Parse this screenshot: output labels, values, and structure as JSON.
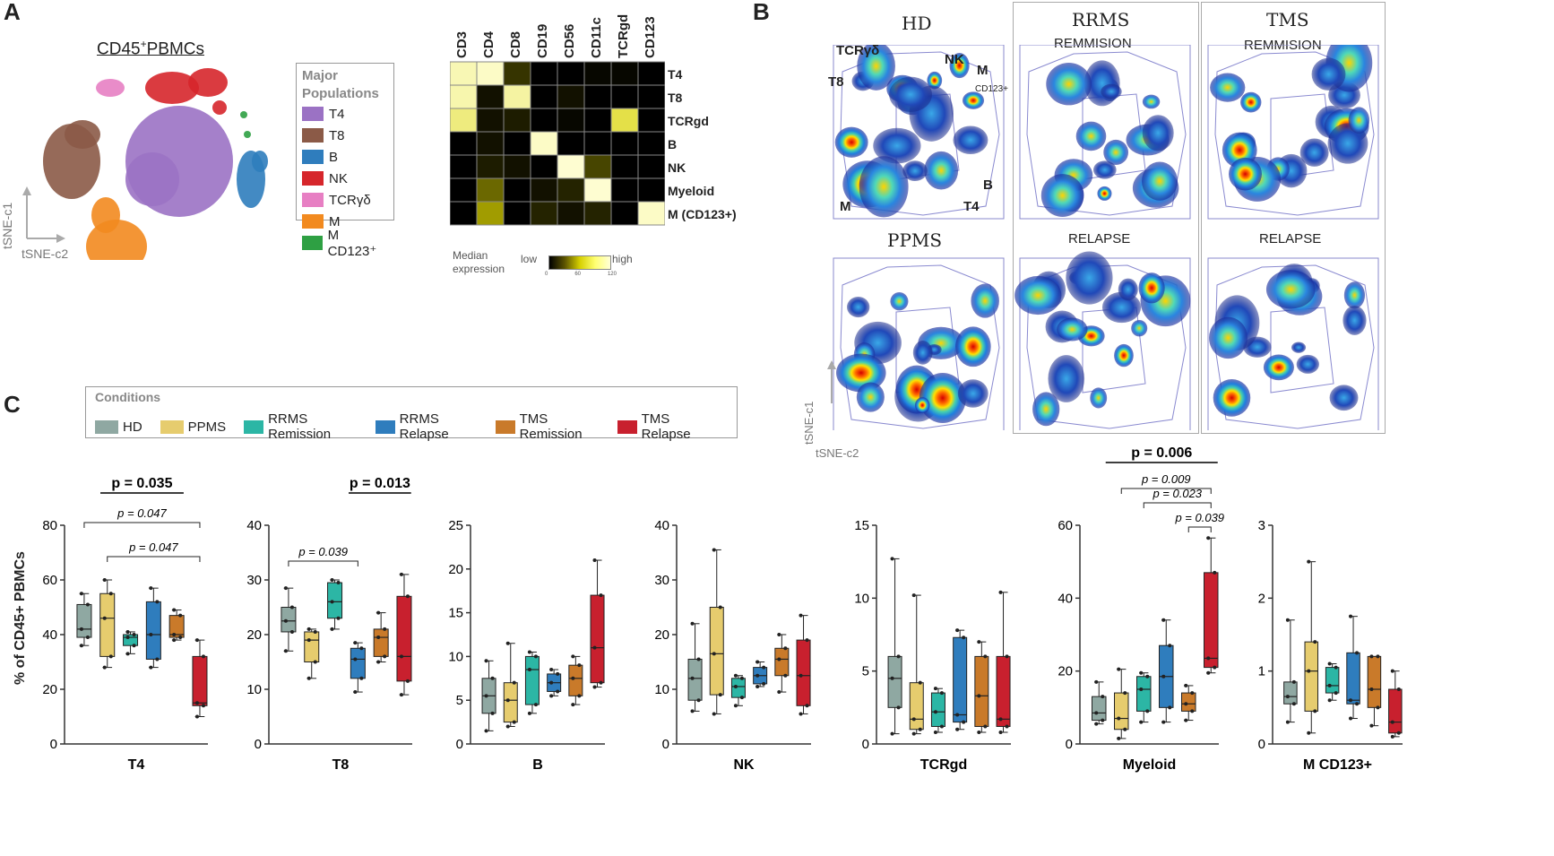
{
  "panels": {
    "a": "A",
    "b": "B",
    "c": "C"
  },
  "panelA": {
    "title": "CD45",
    "title_sup": "+",
    "title_rest": "PBMCs",
    "axis_y": "tSNE-c1",
    "axis_x": "tSNE-c2",
    "legend_title_1": "Major",
    "legend_title_2": "Populations",
    "legend": [
      {
        "label": "T4",
        "color": "#9b72c4"
      },
      {
        "label": "T8",
        "color": "#8b5a47"
      },
      {
        "label": "B",
        "color": "#2f7dbd"
      },
      {
        "label": "NK",
        "color": "#d6262b"
      },
      {
        "label": "TCRγδ",
        "color": "#e77fc3"
      },
      {
        "label": "M",
        "color": "#f28a1f"
      },
      {
        "label": "M CD123⁺",
        "color": "#2ea043"
      }
    ],
    "heatmap": {
      "columns": [
        "CD3",
        "CD4",
        "CD8",
        "CD19",
        "CD56",
        "CD11c",
        "TCRgd",
        "CD123"
      ],
      "rows": [
        "T4",
        "T8",
        "TCRgd",
        "B",
        "NK",
        "Myeloid",
        "M (CD123+)"
      ],
      "values": [
        [
          110,
          115,
          15,
          0,
          0,
          2,
          2,
          0
        ],
        [
          108,
          5,
          105,
          0,
          5,
          0,
          0,
          0
        ],
        [
          95,
          5,
          8,
          0,
          2,
          0,
          80,
          0
        ],
        [
          0,
          5,
          0,
          115,
          0,
          0,
          0,
          0
        ],
        [
          0,
          8,
          5,
          0,
          118,
          20,
          0,
          0
        ],
        [
          0,
          30,
          0,
          5,
          10,
          118,
          0,
          0
        ],
        [
          0,
          45,
          0,
          10,
          5,
          10,
          0,
          115
        ]
      ],
      "legend_label_1": "Median",
      "legend_label_2": "expression",
      "low": "low",
      "high": "high",
      "ticks": [
        "0",
        "60",
        "120"
      ]
    }
  },
  "panelB": {
    "hd": "HD",
    "rrms": "RRMS",
    "tms": "TMS",
    "ppms": "PPMS",
    "remission1": "REMMISION",
    "remission2": "REMMISION",
    "relapse1": "RELAPSE",
    "relapse2": "RELAPSE",
    "labels": {
      "tcr": "TCRγδ",
      "nk": "NK",
      "m": "M",
      "cd123": "CD123+",
      "t8": "T8",
      "b": "B",
      "m2": "M",
      "t4": "T4"
    },
    "axis_y": "tSNE-c1",
    "axis_x": "tSNE-c2"
  },
  "conditions": {
    "title": "Conditions",
    "items": [
      {
        "label": "HD",
        "color": "#8fa8a2"
      },
      {
        "label": "PPMS",
        "color": "#e6cc6e"
      },
      {
        "label": "RRMS Remission",
        "color": "#2cb6a5"
      },
      {
        "label": "RRMS Relapse",
        "color": "#2f7dbd"
      },
      {
        "label": "TMS Remission",
        "color": "#c97a2a"
      },
      {
        "label": "TMS Relapse",
        "color": "#c8202e"
      }
    ]
  },
  "y_axis_label": "% of CD45+ PBMCs",
  "chart_data": [
    {
      "type": "box",
      "title": "T4",
      "ylim": [
        0,
        80
      ],
      "yticks": [
        "0",
        "20",
        "40",
        "60",
        "80"
      ],
      "boxes": [
        [
          36,
          39,
          42,
          51,
          55
        ],
        [
          28,
          32,
          46,
          55,
          60
        ],
        [
          33,
          36,
          39,
          40,
          41
        ],
        [
          28,
          31,
          40,
          52,
          57
        ],
        [
          38,
          39,
          40,
          47,
          49
        ],
        [
          10,
          14,
          15,
          32,
          38
        ]
      ],
      "bold_p": "p = 0.035",
      "p1": "p = 0.047",
      "p2": "p = 0.047"
    },
    {
      "type": "box",
      "title": "T8",
      "ylim": [
        0,
        40
      ],
      "yticks": [
        "0",
        "10",
        "20",
        "30",
        "40"
      ],
      "boxes": [
        [
          17,
          20.5,
          22.5,
          25,
          28.5
        ],
        [
          12,
          15,
          19,
          20.5,
          21
        ],
        [
          21,
          23,
          26,
          29.5,
          30
        ],
        [
          9.5,
          12,
          15.5,
          17.5,
          18.5
        ],
        [
          15,
          16,
          19.5,
          21,
          24
        ],
        [
          9,
          11.5,
          16,
          27,
          31
        ]
      ],
      "bold_p": "p = 0.013",
      "p1": "p = 0.039"
    },
    {
      "type": "box",
      "title": "B",
      "ylim": [
        0,
        25
      ],
      "yticks": [
        "0",
        "5",
        "10",
        "15",
        "20",
        "25"
      ],
      "boxes": [
        [
          1.5,
          3.5,
          5.5,
          7.5,
          9.5
        ],
        [
          2,
          2.5,
          5,
          7,
          11.5
        ],
        [
          3.5,
          4.5,
          8.5,
          10,
          10.5
        ],
        [
          5.5,
          6,
          7,
          8,
          8.5
        ],
        [
          4.5,
          5.5,
          7.5,
          9,
          10
        ],
        [
          6.5,
          7,
          11,
          17,
          21
        ]
      ]
    },
    {
      "type": "box",
      "title": "NK",
      "ylim": [
        0,
        40
      ],
      "yticks": [
        "0",
        "10",
        "20",
        "30",
        "40"
      ],
      "boxes": [
        [
          6,
          8,
          12,
          15.5,
          22
        ],
        [
          5.5,
          9,
          16.5,
          25,
          35.5
        ],
        [
          7,
          8.5,
          10.5,
          12,
          12.5
        ],
        [
          10.5,
          11,
          12.5,
          14,
          15
        ],
        [
          9.5,
          12.5,
          15.5,
          17.5,
          20
        ],
        [
          5.5,
          7,
          12.5,
          19,
          23.5
        ]
      ]
    },
    {
      "type": "box",
      "title": "TCRgd",
      "ylim": [
        0,
        15
      ],
      "yticks": [
        "0",
        "5",
        "10",
        "15"
      ],
      "boxes": [
        [
          0.7,
          2.5,
          4.5,
          6,
          12.7
        ],
        [
          0.7,
          1,
          1.7,
          4.2,
          10.2
        ],
        [
          0.8,
          1.2,
          2.2,
          3.5,
          3.8
        ],
        [
          1,
          1.5,
          2,
          7.3,
          7.8
        ],
        [
          0.8,
          1.2,
          3.3,
          6,
          7
        ],
        [
          0.8,
          1.2,
          1.7,
          6,
          10.4
        ]
      ]
    },
    {
      "type": "box",
      "title": "Myeloid",
      "ylim": [
        0,
        60
      ],
      "yticks": [
        "0",
        "20",
        "40",
        "60"
      ],
      "boxes": [
        [
          5.5,
          6.5,
          8.5,
          13,
          17
        ],
        [
          1.5,
          4,
          7,
          14,
          20.5
        ],
        [
          6,
          9,
          15,
          18.5,
          19.5
        ],
        [
          6,
          10,
          18.5,
          27,
          34
        ],
        [
          6.5,
          9,
          11,
          14,
          16
        ],
        [
          19.5,
          21,
          23.5,
          47,
          56.5
        ]
      ],
      "bold_p": "p = 0.006",
      "p1": "p = 0.009",
      "p2": "p = 0.023",
      "p3": "p = 0.039"
    },
    {
      "type": "box",
      "title": "M CD123+",
      "ylim": [
        0,
        3
      ],
      "yticks": [
        "0",
        "1",
        "2",
        "3"
      ],
      "boxes": [
        [
          0.3,
          0.55,
          0.65,
          0.85,
          1.7
        ],
        [
          0.15,
          0.45,
          1,
          1.4,
          2.5
        ],
        [
          0.6,
          0.7,
          0.8,
          1.05,
          1.1
        ],
        [
          0.35,
          0.55,
          0.6,
          1.25,
          1.75
        ],
        [
          0.25,
          0.5,
          0.75,
          1.2,
          1.2
        ],
        [
          0.1,
          0.15,
          0.3,
          0.75,
          1
        ]
      ]
    }
  ]
}
